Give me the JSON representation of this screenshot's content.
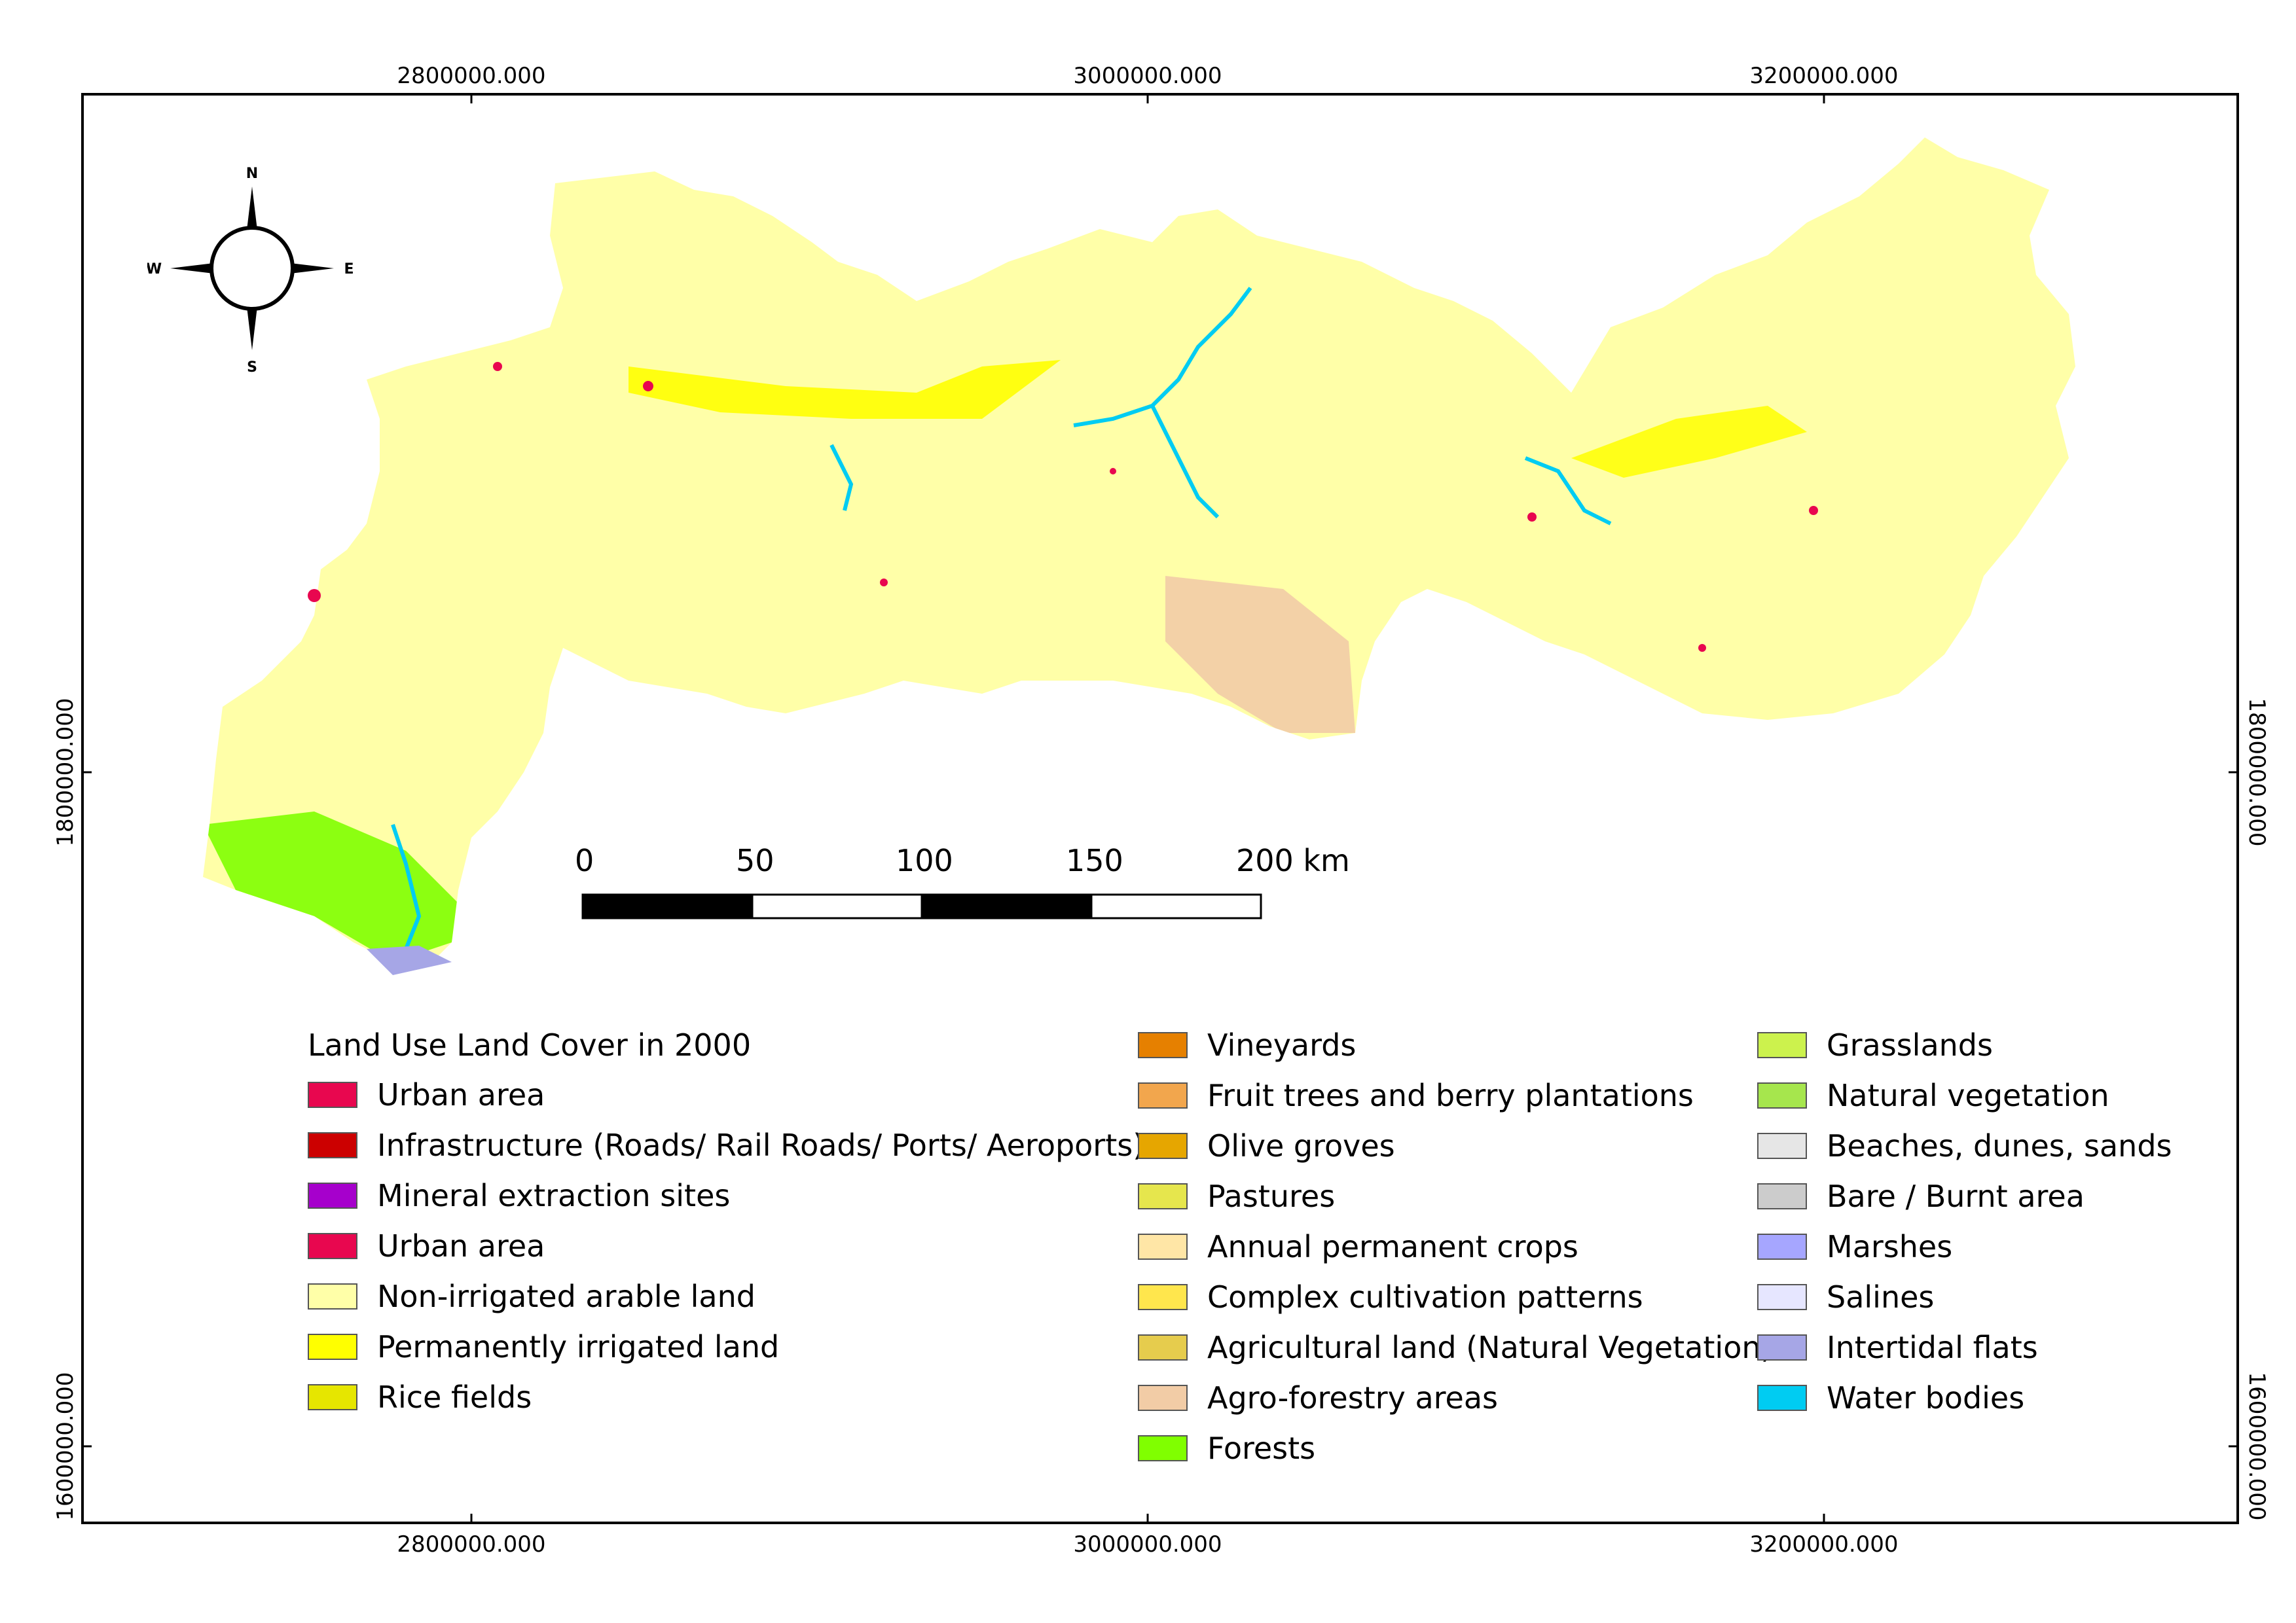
{
  "map": {
    "coordinates": {
      "x_top": [
        "2800000.000",
        "3000000.000",
        "3200000.000"
      ],
      "x_bottom": [
        "2800000.000",
        "3000000.000",
        "3200000.000"
      ],
      "y_left": [
        "1800000.000",
        "1600000.000"
      ],
      "y_right": [
        "1800000.000",
        "1600000.000"
      ]
    },
    "compass": {
      "n": "N",
      "s": "S",
      "e": "E",
      "w": "W"
    },
    "scale_bar": {
      "labels": [
        "0",
        "50",
        "100",
        "150",
        "200 km"
      ]
    }
  },
  "legend": {
    "title": "Land Use Land Cover in 2000",
    "columns": [
      [
        {
          "label": "Urban area",
          "color": "#e8074f"
        },
        {
          "label": "Infrastructure (Roads/ Rail Roads/ Ports/ Aeroports)",
          "color": "#cc0000"
        },
        {
          "label": "Mineral extraction sites",
          "color": "#a600cc"
        },
        {
          "label": "Urban area",
          "color": "#e8074f"
        },
        {
          "label": "Non-irrigated arable land",
          "color": "#ffffa8"
        },
        {
          "label": "Permanently irrigated land",
          "color": "#ffff00"
        },
        {
          "label": "Rice fields",
          "color": "#e6e600"
        }
      ],
      [
        {
          "label": "Vineyards",
          "color": "#e68000"
        },
        {
          "label": "Fruit trees and berry plantations",
          "color": "#f2a64d"
        },
        {
          "label": "Olive groves",
          "color": "#e6a600"
        },
        {
          "label": "Pastures",
          "color": "#e6e64d"
        },
        {
          "label": "Annual permanent crops",
          "color": "#ffe6a6"
        },
        {
          "label": "Complex cultivation patterns",
          "color": "#ffe64d"
        },
        {
          "label": "Agricultural land (Natural Vegetation)",
          "color": "#e6cc4d"
        },
        {
          "label": "Agro-forestry areas",
          "color": "#f2cca6"
        },
        {
          "label": "Forests",
          "color": "#80ff00"
        }
      ],
      [
        {
          "label": "Grasslands",
          "color": "#ccf24d"
        },
        {
          "label": "Natural vegetation",
          "color": "#a6e64d"
        },
        {
          "label": "Beaches, dunes, sands",
          "color": "#e6e6e6"
        },
        {
          "label": "Bare / Burnt area",
          "color": "#cccccc"
        },
        {
          "label": "Marshes",
          "color": "#a6a6ff"
        },
        {
          "label": "Salines",
          "color": "#e6e6ff"
        },
        {
          "label": "Intertidal flats",
          "color": "#a6a6e6"
        },
        {
          "label": "Water bodies",
          "color": "#00ccf2"
        }
      ]
    ]
  }
}
